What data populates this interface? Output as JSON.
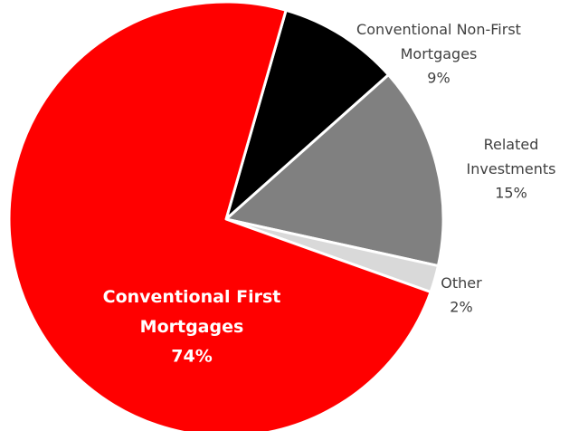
{
  "chart_data": {
    "type": "pie",
    "categories": [
      "Conventional Non-First Mortgages",
      "Related Investments",
      "Other",
      "Conventional First Mortgages"
    ],
    "values": [
      9,
      15,
      2,
      74
    ],
    "value_labels": [
      "9%",
      "15%",
      "2%",
      "74%"
    ],
    "colors": [
      "#000000",
      "#808080",
      "#d9d9d9",
      "#ff0000"
    ]
  }
}
